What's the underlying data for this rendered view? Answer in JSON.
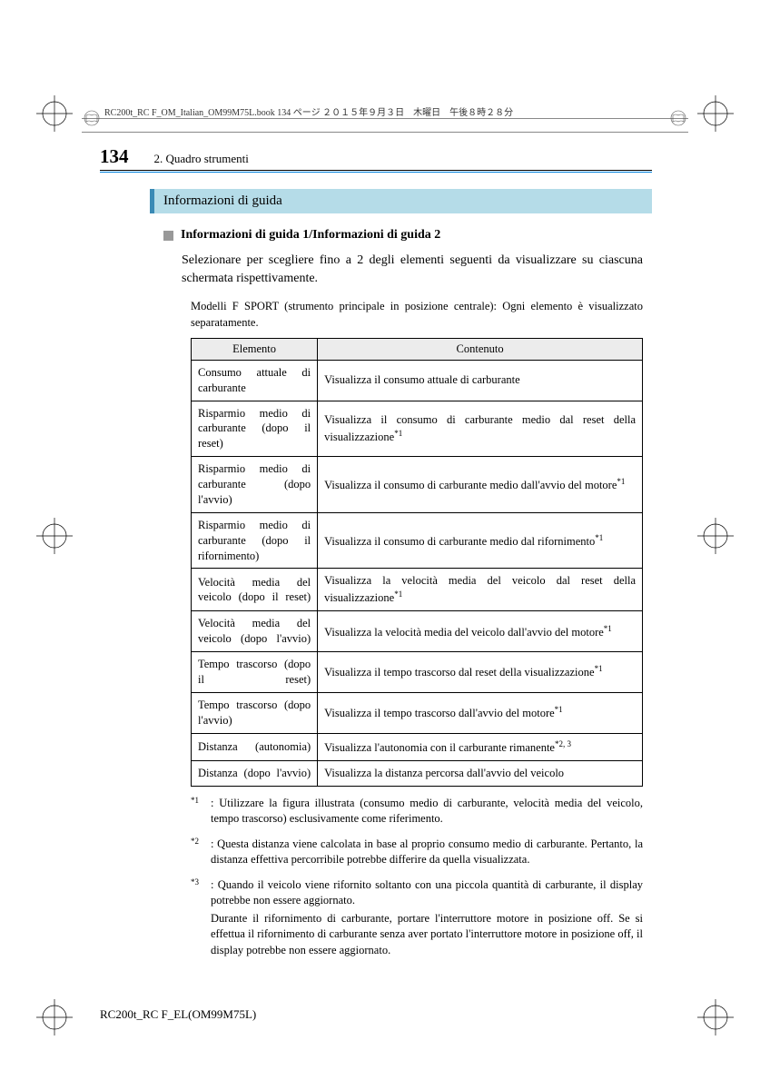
{
  "header_meta": "RC200t_RC F_OM_Italian_OM99M75L.book  134 ページ  ２０１５年９月３日　木曜日　午後８時２８分",
  "page_number": "134",
  "section_name": "2. Quadro strumenti",
  "section_heading": "Informazioni di guida",
  "sub_heading": "Informazioni di guida 1/Informazioni di guida 2",
  "body_text": "Selezionare per scegliere fino a 2 degli elementi seguenti da visualizzare su ciascuna schermata rispettivamente.",
  "note_text": "Modelli F SPORT (strumento principale in posizione centrale): Ogni elemento è visualizzato separatamente.",
  "table": {
    "headers": [
      "Elemento",
      "Contenuto"
    ],
    "rows": [
      {
        "el": "Consumo attuale di carburante",
        "ct": "Visualizza il consumo attuale di carburante",
        "sup": ""
      },
      {
        "el": "Risparmio medio di carburante (dopo il reset)",
        "ct": "Visualizza il consumo di carburante medio dal reset della visualizzazione",
        "sup": "*1"
      },
      {
        "el": "Risparmio medio di carburante (dopo l'avvio)",
        "ct": "Visualizza il consumo di carburante medio dall'avvio del motore",
        "sup": "*1"
      },
      {
        "el": "Risparmio medio di carburante (dopo il rifornimento)",
        "ct": "Visualizza il consumo di carburante medio dal rifornimento",
        "sup": "*1"
      },
      {
        "el": "Velocità media del veicolo (dopo il reset)",
        "ct": "Visualizza la velocità media del veicolo dal reset della visualizzazione",
        "sup": "*1"
      },
      {
        "el": "Velocità media del veicolo (dopo l'avvio)",
        "ct": "Visualizza la velocità media del veicolo dall'avvio del motore",
        "sup": "*1"
      },
      {
        "el": "Tempo trascorso (dopo il reset)",
        "ct": "Visualizza il tempo trascorso dal reset della visualizzazione",
        "sup": "*1"
      },
      {
        "el": "Tempo trascorso (dopo l'avvio)",
        "ct": "Visualizza il tempo trascorso dall'avvio del motore",
        "sup": "*1"
      },
      {
        "el": "Distanza (autonomia)",
        "ct": "Visualizza l'autonomia con il carburante rimanente",
        "sup": "*2, 3"
      },
      {
        "el": "Distanza (dopo l'avvio)",
        "ct": "Visualizza la distanza percorsa dall'avvio del veicolo",
        "sup": ""
      }
    ]
  },
  "footnotes": [
    {
      "mark": "*1",
      "paras": [
        ": Utilizzare la figura illustrata (consumo medio di carburante, velocità media del veicolo, tempo trascorso) esclusivamente come riferimento."
      ]
    },
    {
      "mark": "*2",
      "paras": [
        ": Questa distanza viene calcolata in base al proprio consumo medio di carburante. Pertanto, la distanza effettiva percorribile potrebbe differire da quella visualizzata."
      ]
    },
    {
      "mark": "*3",
      "paras": [
        ": Quando il veicolo viene rifornito soltanto con una piccola quantità di carburante, il display potrebbe non essere aggiornato.",
        "Durante il rifornimento di carburante, portare l'interruttore motore in posizione off. Se si effettua il rifornimento di carburante senza aver portato l'interruttore motore in posizione off, il display potrebbe non essere aggiornato."
      ]
    }
  ],
  "footer_doc": "RC200t_RC F_EL(OM99M75L)",
  "colors": {
    "heading_bg": "#b5dce8",
    "heading_border": "#3a8ab5",
    "blue_line": "#0080dd",
    "table_header_bg": "#ececec"
  }
}
